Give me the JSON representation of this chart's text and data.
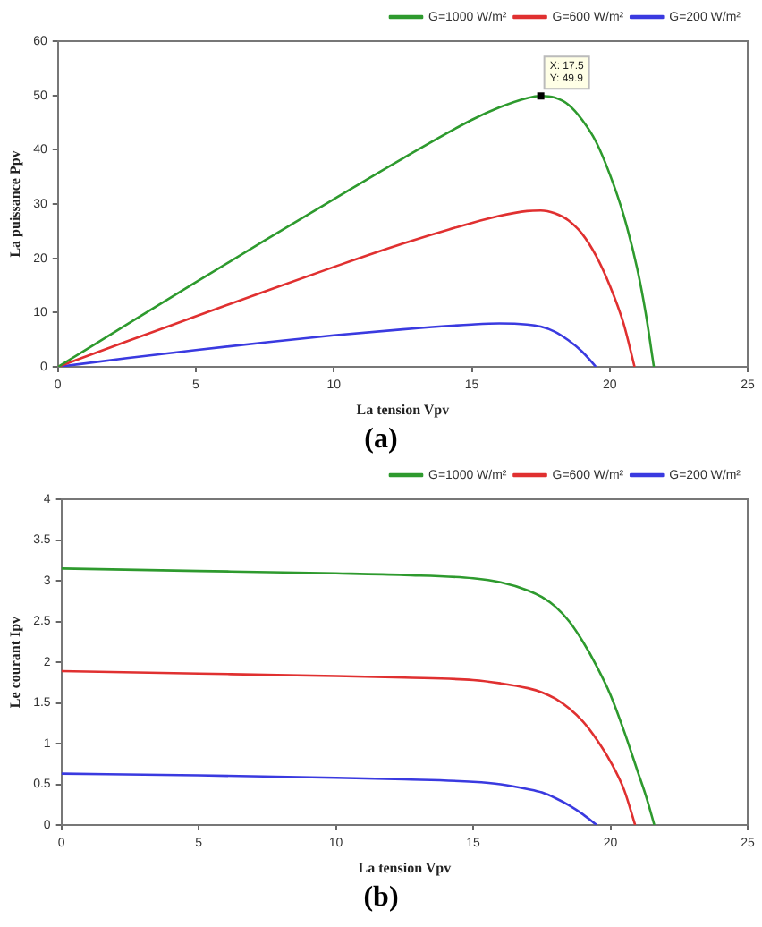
{
  "chart_data": [
    {
      "type": "line",
      "xlabel": "La tension Vpv",
      "ylabel": "La puissance Ppv",
      "xlim": [
        0,
        25
      ],
      "xticks": [
        0,
        5,
        10,
        15,
        20,
        25
      ],
      "ylim": [
        0,
        60
      ],
      "yticks": [
        0,
        10,
        20,
        30,
        40,
        50,
        60
      ],
      "grid": false,
      "legend": "top right",
      "marker": "none",
      "line_style": "solid",
      "annotations": [
        {
          "text": "X: 17.5\nY: 49.9",
          "x": 17.5,
          "y": 49.9
        },
        "(a)"
      ],
      "series": [
        {
          "name": "G=1000 W/m²",
          "color": "#2e9a2e",
          "x": [
            0,
            2.5,
            5,
            7.5,
            10,
            12.5,
            15,
            16,
            17,
            17.5,
            18,
            18.5,
            19,
            19.5,
            20,
            20.5,
            21,
            21.3,
            21.6
          ],
          "values": [
            0,
            7.8,
            15.6,
            23.3,
            30.9,
            38.4,
            45.5,
            47.8,
            49.5,
            49.9,
            49.6,
            48.3,
            45.5,
            41.5,
            35.5,
            28,
            18,
            10,
            0
          ]
        },
        {
          "name": "G=600 W/m²",
          "color": "#e03030",
          "x": [
            0,
            2.5,
            5,
            7.5,
            10,
            12.5,
            15,
            16,
            17,
            17.5,
            18,
            18.5,
            19,
            19.5,
            20,
            20.5,
            20.9
          ],
          "values": [
            0,
            4.7,
            9.3,
            13.9,
            18.4,
            22.7,
            26.5,
            27.8,
            28.7,
            28.8,
            28.3,
            27,
            24.5,
            20.5,
            15,
            8,
            0
          ]
        },
        {
          "name": "G=200 W/m²",
          "color": "#3a3ae0",
          "x": [
            0,
            2.5,
            5,
            7.5,
            10,
            12.5,
            15,
            16,
            17,
            17.5,
            18,
            18.5,
            19,
            19.5
          ],
          "values": [
            0,
            1.6,
            3.1,
            4.5,
            5.8,
            6.9,
            7.8,
            8,
            7.8,
            7.4,
            6.5,
            4.9,
            2.8,
            0
          ]
        }
      ]
    },
    {
      "type": "line",
      "xlabel": "La tension Vpv",
      "ylabel": "Le courant Ipv",
      "xlim": [
        0,
        25
      ],
      "xticks": [
        0,
        5,
        10,
        15,
        20,
        25
      ],
      "ylim": [
        0,
        4
      ],
      "yticks": [
        0,
        0.5,
        1,
        1.5,
        2,
        2.5,
        3,
        3.5,
        4
      ],
      "grid": false,
      "legend": "top right",
      "marker": "none",
      "line_style": "solid",
      "annotations": [
        "(b)"
      ],
      "series": [
        {
          "name": "G=1000 W/m²",
          "color": "#2e9a2e",
          "x": [
            0,
            5,
            10,
            12.5,
            15,
            16,
            17,
            17.5,
            18,
            18.5,
            19,
            19.5,
            20,
            20.5,
            21,
            21.3,
            21.6
          ],
          "values": [
            3.15,
            3.12,
            3.09,
            3.07,
            3.03,
            2.98,
            2.88,
            2.8,
            2.68,
            2.5,
            2.25,
            1.95,
            1.6,
            1.15,
            0.65,
            0.35,
            0
          ]
        },
        {
          "name": "G=600 W/m²",
          "color": "#e03030",
          "x": [
            0,
            5,
            10,
            12.5,
            15,
            16,
            17,
            17.5,
            18,
            18.5,
            19,
            19.5,
            20,
            20.5,
            20.9
          ],
          "values": [
            1.89,
            1.86,
            1.83,
            1.81,
            1.78,
            1.74,
            1.68,
            1.63,
            1.55,
            1.43,
            1.27,
            1.05,
            0.78,
            0.43,
            0
          ]
        },
        {
          "name": "G=200 W/m²",
          "color": "#3a3ae0",
          "x": [
            0,
            5,
            10,
            12.5,
            15,
            16,
            17,
            17.5,
            18,
            18.5,
            19,
            19.5
          ],
          "values": [
            0.63,
            0.61,
            0.58,
            0.56,
            0.53,
            0.5,
            0.44,
            0.4,
            0.33,
            0.24,
            0.13,
            0
          ]
        }
      ]
    }
  ]
}
